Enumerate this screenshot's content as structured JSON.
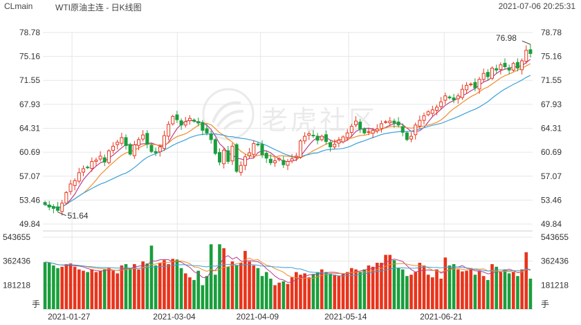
{
  "header": {
    "symbol": "CLmain",
    "title": "WTI原油主连 - 日K线图",
    "datetime": "2021-07-06 20:25:31"
  },
  "watermark": {
    "text": "老虎社区"
  },
  "colors": {
    "up": "#e8341c",
    "down": "#1a9e3c",
    "ma_fast": "#b83b8c",
    "ma_mid": "#f08c2a",
    "ma_slow": "#3aa0d8",
    "grid": "#e6e6e6",
    "label": "#333333"
  },
  "chart_data": [
    {
      "type": "candlestick",
      "title": "WTI原油主连 - 日K线图",
      "ylim": [
        49.84,
        78.78
      ],
      "y_ticks": [
        "78.78",
        "75.16",
        "71.55",
        "67.93",
        "64.31",
        "60.69",
        "57.07",
        "53.46",
        "49.84"
      ],
      "x_ticks": [
        "2021-01-27",
        "2021-03-04",
        "2021-04-09",
        "2021-05-14",
        "2021-06-21"
      ],
      "annotations": [
        {
          "label": "76.98",
          "type": "max"
        },
        {
          "label": "51.64",
          "type": "min"
        }
      ],
      "grid": true,
      "closes": [
        52.8,
        52.4,
        52.2,
        51.9,
        53.0,
        54.6,
        55.9,
        56.4,
        57.6,
        58.2,
        58.4,
        59.3,
        59.5,
        60.1,
        59.2,
        60.9,
        61.6,
        62.2,
        62.9,
        61.7,
        60.4,
        61.8,
        62.6,
        63.3,
        61.9,
        60.8,
        60.6,
        61.5,
        63.2,
        64.9,
        66.1,
        65.6,
        64.8,
        65.3,
        65.8,
        65.4,
        65.1,
        64.0,
        63.6,
        62.6,
        60.5,
        59.2,
        61.0,
        59.3,
        61.6,
        57.8,
        58.7,
        60.0,
        60.6,
        62.0,
        61.8,
        60.3,
        59.8,
        59.1,
        59.4,
        59.7,
        58.8,
        59.3,
        59.7,
        60.1,
        62.4,
        63.1,
        63.5,
        63.2,
        62.5,
        63.1,
        62.3,
        61.5,
        61.9,
        62.5,
        63.0,
        63.6,
        64.6,
        65.4,
        64.2,
        63.6,
        63.8,
        64.0,
        64.2,
        65.0,
        65.3,
        65.4,
        65.1,
        64.8,
        63.7,
        62.6,
        63.1,
        64.8,
        65.5,
        66.2,
        66.8,
        67.1,
        67.5,
        68.3,
        69.2,
        68.9,
        68.6,
        69.2,
        70.2,
        70.8,
        71.0,
        70.4,
        71.7,
        72.6,
        72.1,
        73.4,
        73.1,
        73.9,
        73.6,
        73.1,
        74.1,
        73.4,
        74.5,
        76.1,
        75.6
      ],
      "volumes": [
        355000,
        350000,
        330000,
        310000,
        320000,
        340000,
        345000,
        320000,
        300000,
        290000,
        280000,
        300000,
        280000,
        290000,
        300000,
        310000,
        290000,
        270000,
        330000,
        340000,
        310000,
        340000,
        300000,
        360000,
        345000,
        480000,
        330000,
        350000,
        370000,
        340000,
        380000,
        375000,
        310000,
        270000,
        240000,
        220000,
        290000,
        180000,
        250000,
        490000,
        260000,
        490000,
        460000,
        320000,
        360000,
        330000,
        350000,
        440000,
        360000,
        330000,
        310000,
        250000,
        280000,
        230000,
        180000,
        200000,
        210000,
        190000,
        240000,
        280000,
        260000,
        270000,
        240000,
        265000,
        280000,
        300000,
        280000,
        270000,
        260000,
        250000,
        270000,
        280000,
        310000,
        300000,
        280000,
        300000,
        330000,
        320000,
        350000,
        350000,
        410000,
        410000,
        370000,
        310000,
        300000,
        250000,
        260000,
        280000,
        350000,
        330000,
        260000,
        240000,
        300000,
        230000,
        390000,
        330000,
        340000,
        300000,
        285000,
        290000,
        310000,
        260000,
        290000,
        250000,
        220000,
        340000,
        320000,
        280000,
        300000,
        270000,
        280000,
        250000,
        300000,
        430000,
        230000
      ],
      "volume_ticks": [
        "543655",
        "362436",
        "181218"
      ],
      "volume_unit": "手"
    }
  ]
}
